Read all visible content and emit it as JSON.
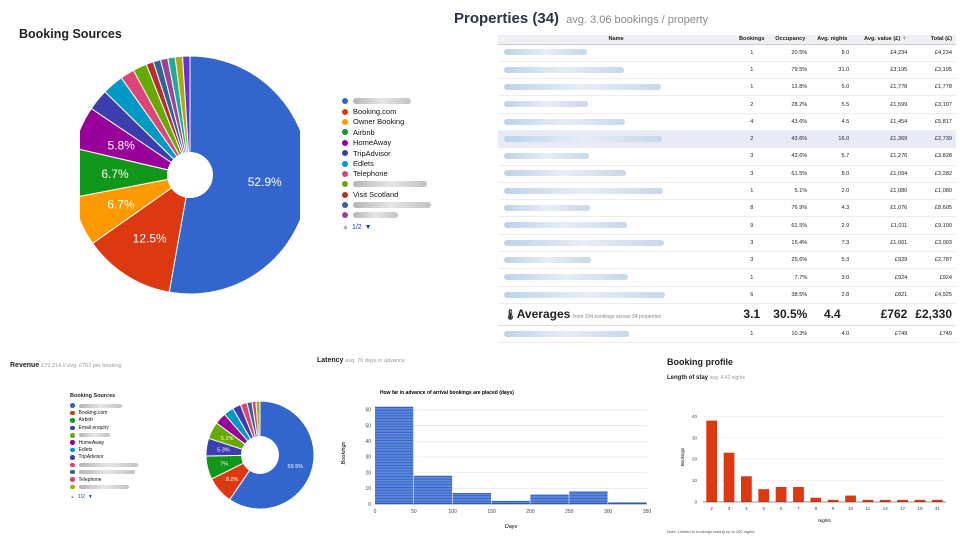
{
  "booking_sources": {
    "title": "Booking Sources",
    "legend": [
      {
        "label": "",
        "color": "#3366cc"
      },
      {
        "label": "Booking.com",
        "color": "#dc3912"
      },
      {
        "label": "Owner Booking",
        "color": "#ff9900"
      },
      {
        "label": "Airbnb",
        "color": "#109618"
      },
      {
        "label": "HomeAway",
        "color": "#990099"
      },
      {
        "label": "TripAdvisor",
        "color": "#3b3eac"
      },
      {
        "label": "Edlets",
        "color": "#0099c6"
      },
      {
        "label": "Telephone",
        "color": "#dd4477"
      },
      {
        "label": "",
        "color": "#66aa00"
      },
      {
        "label": "Visit Scotland",
        "color": "#b82e2e"
      },
      {
        "label": "",
        "color": "#316395"
      },
      {
        "label": "",
        "color": "#994499"
      }
    ],
    "pager": "1/2"
  },
  "properties": {
    "title": "Properties (34)",
    "subtitle": "avg. 3.06 bookings / property",
    "columns": [
      "Name",
      "Bookings",
      "Occupancy",
      "Avg. nights",
      "Avg. value (£)",
      "Total (£)"
    ],
    "sort_icon": "sort-arrow-icon",
    "rows": [
      {
        "name": "",
        "bookings": "1",
        "occupancy": "20.5%",
        "nights": "8.0",
        "avg_value": "£4,234",
        "total": "£4,234"
      },
      {
        "name": "",
        "bookings": "1",
        "occupancy": "79.5%",
        "nights": "31.0",
        "avg_value": "£3,195",
        "total": "£3,195"
      },
      {
        "name": "",
        "bookings": "1",
        "occupancy": "12.8%",
        "nights": "5.0",
        "avg_value": "£1,778",
        "total": "£1,778"
      },
      {
        "name": "",
        "bookings": "2",
        "occupancy": "28.2%",
        "nights": "5.5",
        "avg_value": "£1,599",
        "total": "£3,197"
      },
      {
        "name": "",
        "bookings": "4",
        "occupancy": "43.6%",
        "nights": "4.5",
        "avg_value": "£1,454",
        "total": "£5,817"
      },
      {
        "name": "",
        "bookings": "2",
        "occupancy": "43.6%",
        "nights": "16.0",
        "avg_value": "£1,369",
        "total": "£2,739"
      },
      {
        "name": "",
        "bookings": "3",
        "occupancy": "43.6%",
        "nights": "5.7",
        "avg_value": "£1,276",
        "total": "£3,828"
      },
      {
        "name": "",
        "bookings": "3",
        "occupancy": "61.5%",
        "nights": "8.0",
        "avg_value": "£1,094",
        "total": "£3,282"
      },
      {
        "name": "",
        "bookings": "1",
        "occupancy": "5.1%",
        "nights": "2.0",
        "avg_value": "£1,080",
        "total": "£1,080"
      },
      {
        "name": "",
        "bookings": "8",
        "occupancy": "76.9%",
        "nights": "4.3",
        "avg_value": "£1,076",
        "total": "£8,605"
      },
      {
        "name": "",
        "bookings": "9",
        "occupancy": "61.5%",
        "nights": "2.9",
        "avg_value": "£1,011",
        "total": "£9,100"
      },
      {
        "name": "",
        "bookings": "3",
        "occupancy": "15.4%",
        "nights": "7.3",
        "avg_value": "£1,001",
        "total": "£3,003"
      },
      {
        "name": "",
        "bookings": "3",
        "occupancy": "25.6%",
        "nights": "5.3",
        "avg_value": "£929",
        "total": "£2,787"
      },
      {
        "name": "",
        "bookings": "1",
        "occupancy": "7.7%",
        "nights": "3.0",
        "avg_value": "£924",
        "total": "£924"
      },
      {
        "name": "",
        "bookings": "6",
        "occupancy": "38.5%",
        "nights": "2.8",
        "avg_value": "£821",
        "total": "£4,925"
      }
    ],
    "averages": {
      "label": "Averages",
      "note": "from 104 bookings across 34 properties",
      "bookings": "3.1",
      "occupancy": "30.5%",
      "nights": "4.4",
      "avg_value": "£762",
      "total": "£2,330"
    },
    "last_row": {
      "name": "",
      "bookings": "1",
      "occupancy": "10.3%",
      "nights": "4.0",
      "avg_value": "£749",
      "total": "£749"
    }
  },
  "revenue": {
    "title": "Revenue",
    "subtitle": "£79,214 // avg. £762 per booking",
    "legend_title": "Booking Sources",
    "legend": [
      {
        "label": "",
        "color": "#3366cc"
      },
      {
        "label": "Booking.com",
        "color": "#dc3912"
      },
      {
        "label": "Airbnb",
        "color": "#109618"
      },
      {
        "label": "Email enquiry",
        "color": "#3b3eac"
      },
      {
        "label": "",
        "color": "#66aa00"
      },
      {
        "label": "HomeAway",
        "color": "#990099"
      },
      {
        "label": "Edlets",
        "color": "#0099c6"
      },
      {
        "label": "TripAdvisor",
        "color": "#3b3eac"
      },
      {
        "label": "",
        "color": "#dd4477"
      },
      {
        "label": "",
        "color": "#316395"
      },
      {
        "label": "Telephone",
        "color": "#dd4477"
      },
      {
        "label": "",
        "color": "#aaaa11"
      }
    ],
    "pager": "1/2"
  },
  "latency": {
    "title": "Latency",
    "subtitle": "avg. 76 days in advance"
  },
  "booking_profile": {
    "title": "Booking profile",
    "subtitle": "Length of stay",
    "subtitle_note": "avg. 4.42 nights",
    "note": "Note: Limited to bookings lasting up to 100 nights."
  },
  "chart_data": [
    {
      "type": "pie",
      "title": "Booking Sources",
      "slices": [
        {
          "label": "",
          "value": 52.9,
          "color": "#3366cc"
        },
        {
          "label": "Booking.com",
          "value": 12.5,
          "color": "#dc3912"
        },
        {
          "label": "Owner Booking",
          "value": 6.7,
          "color": "#ff9900"
        },
        {
          "label": "Airbnb",
          "value": 6.7,
          "color": "#109618"
        },
        {
          "label": "HomeAway",
          "value": 5.8,
          "color": "#990099"
        },
        {
          "label": "TripAdvisor",
          "value": 2.9,
          "color": "#3b3eac"
        },
        {
          "label": "Edlets",
          "value": 2.9,
          "color": "#0099c6"
        },
        {
          "label": "Telephone",
          "value": 1.9,
          "color": "#dd4477"
        },
        {
          "label": "",
          "value": 1.9,
          "color": "#66aa00"
        },
        {
          "label": "Visit Scotland",
          "value": 1.0,
          "color": "#b82e2e"
        },
        {
          "label": "",
          "value": 1.0,
          "color": "#316395"
        },
        {
          "label": "",
          "value": 1.0,
          "color": "#994499"
        },
        {
          "label": "",
          "value": 1.0,
          "color": "#22aa99"
        },
        {
          "label": "",
          "value": 1.0,
          "color": "#aaaa11"
        },
        {
          "label": "",
          "value": 1.0,
          "color": "#6633cc"
        }
      ],
      "shown_labels": [
        "52.9%",
        "12.5%",
        "6.7%",
        "6.7%",
        "5.8%"
      ]
    },
    {
      "type": "pie",
      "title": "Revenue by Booking Sources",
      "slices": [
        {
          "label": "",
          "value": 59.5,
          "color": "#3366cc"
        },
        {
          "label": "Booking.com",
          "value": 8.2,
          "color": "#dc3912"
        },
        {
          "label": "Airbnb",
          "value": 7.0,
          "color": "#109618"
        },
        {
          "label": "Email enquiry",
          "value": 5.3,
          "color": "#3b3eac"
        },
        {
          "label": "",
          "value": 5.1,
          "color": "#66aa00"
        },
        {
          "label": "HomeAway",
          "value": 3.5,
          "color": "#990099"
        },
        {
          "label": "Edlets",
          "value": 3.0,
          "color": "#0099c6"
        },
        {
          "label": "TripAdvisor",
          "value": 2.5,
          "color": "#3b3eac"
        },
        {
          "label": "",
          "value": 2.0,
          "color": "#dd4477"
        },
        {
          "label": "",
          "value": 1.5,
          "color": "#316395"
        },
        {
          "label": "Telephone",
          "value": 1.2,
          "color": "#dd4477"
        },
        {
          "label": "",
          "value": 1.2,
          "color": "#aaaa11"
        }
      ],
      "shown_labels": [
        "59.5%",
        "8.2%",
        "7%",
        "5.3%",
        "5.1%"
      ]
    },
    {
      "type": "bar",
      "title": "How far in advance of arrival bookings are placed (days)",
      "xlabel": "Days",
      "ylabel": "Bookings",
      "bin_edges": [
        0,
        50,
        100,
        150,
        200,
        250,
        300,
        350
      ],
      "values": [
        62,
        18,
        7,
        2,
        6,
        8,
        1
      ],
      "xticks": [
        0,
        50,
        100,
        150,
        200,
        250,
        300,
        350
      ],
      "yticks": [
        0,
        10,
        20,
        30,
        40,
        50,
        60
      ],
      "ylim": [
        0,
        65
      ],
      "color": "#3366cc"
    },
    {
      "type": "bar",
      "title": "Length of stay",
      "xlabel": "Nights",
      "ylabel": "Bookings",
      "categories": [
        "2",
        "3",
        "4",
        "5",
        "6",
        "7",
        "8",
        "9",
        "10",
        "11",
        "14",
        "17",
        "19",
        "31"
      ],
      "values": [
        38,
        23,
        12,
        6,
        7,
        7,
        2,
        1,
        3,
        1,
        1,
        1,
        1,
        1
      ],
      "yticks": [
        0,
        10,
        20,
        30,
        40
      ],
      "ylim": [
        0,
        42
      ],
      "color": "#dc3912"
    }
  ]
}
